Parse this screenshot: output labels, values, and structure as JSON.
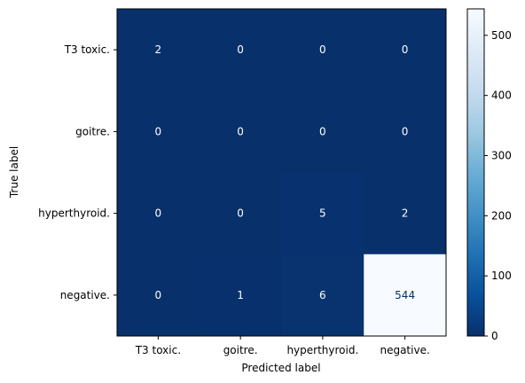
{
  "chart_data": {
    "type": "heatmap",
    "title": "",
    "xlabel": "Predicted label",
    "ylabel": "True label",
    "row_labels": [
      "T3 toxic.",
      "goitre.",
      "hyperthyroid.",
      "negative."
    ],
    "col_labels": [
      "T3 toxic.",
      "goitre.",
      "hyperthyroid.",
      "negative."
    ],
    "values": [
      [
        2,
        0,
        0,
        0
      ],
      [
        0,
        0,
        0,
        0
      ],
      [
        0,
        0,
        5,
        2
      ],
      [
        0,
        1,
        6,
        544
      ]
    ],
    "colormap": "Blues_r",
    "color_low": "#08306b",
    "color_high": "#f7fbff",
    "text_dark_cell": "#ffffff",
    "text_light_cell": "#08306b",
    "vmin": 0,
    "vmax": 544,
    "colorbar_ticks": [
      0,
      100,
      200,
      300,
      400,
      500
    ],
    "grid": false
  }
}
